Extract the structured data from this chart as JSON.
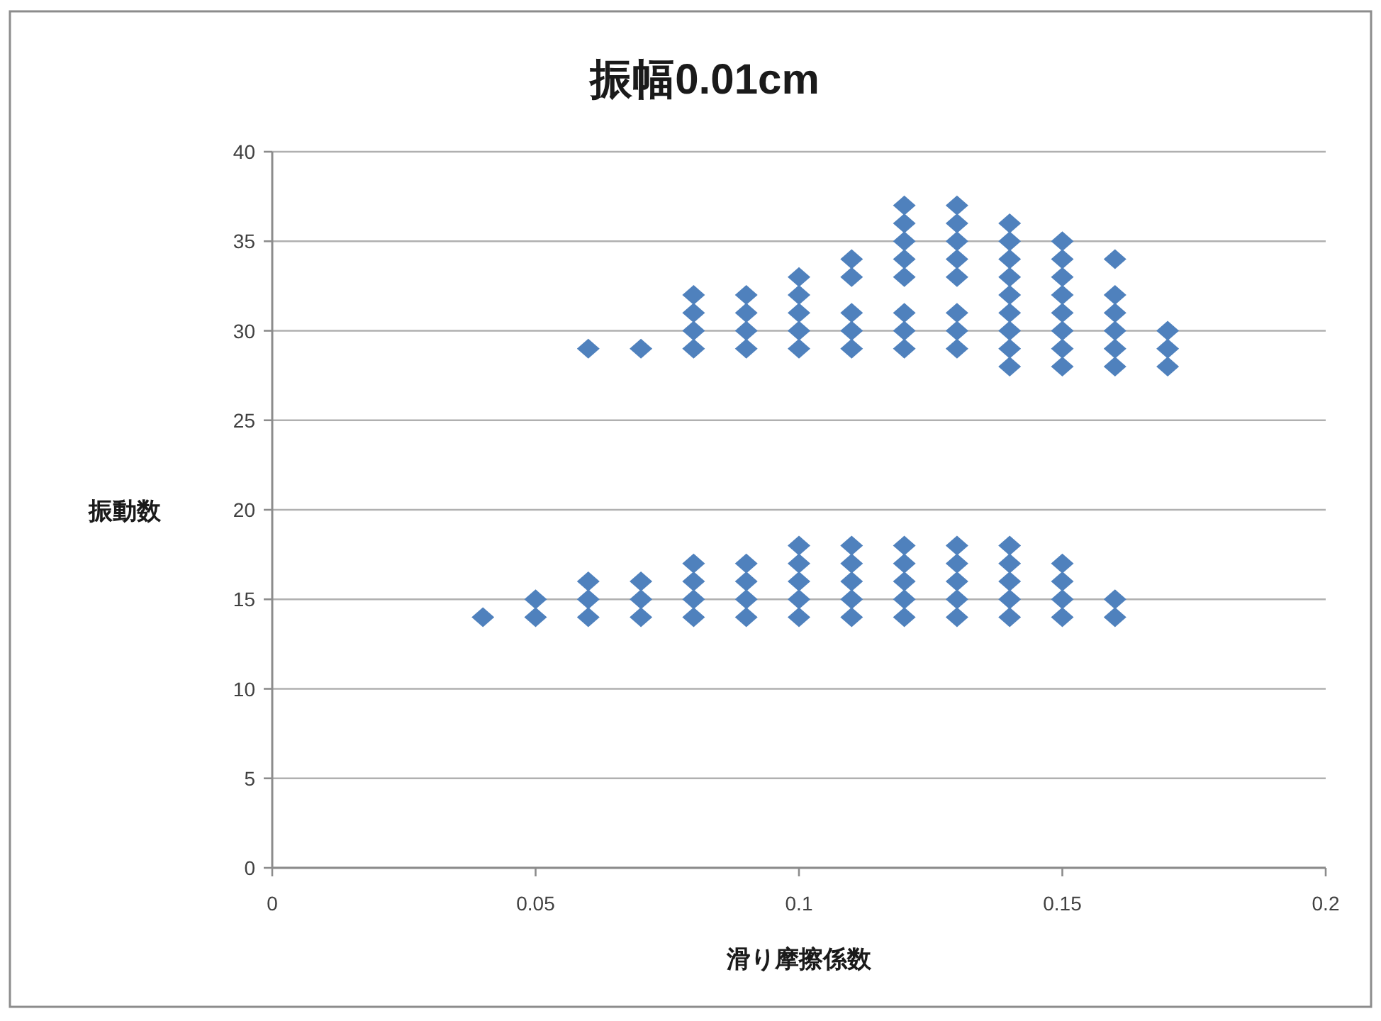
{
  "chart_data": {
    "type": "scatter",
    "title": "振幅0.01cm",
    "xlabel": "滑り摩擦係数",
    "ylabel": "振動数",
    "xlim": [
      0,
      0.2
    ],
    "xticks": [
      0,
      0.05,
      0.1,
      0.15,
      0.2
    ],
    "ylim": [
      0,
      40
    ],
    "yticks": [
      0,
      5,
      10,
      15,
      20,
      25,
      30,
      35,
      40
    ],
    "grid": "y",
    "marker": "diamond",
    "series": [
      {
        "color": "#4f81bd",
        "x": [
          0.04,
          0.05,
          0.05,
          0.06,
          0.06,
          0.06,
          0.07,
          0.07,
          0.07,
          0.08,
          0.08,
          0.08,
          0.08,
          0.09,
          0.09,
          0.09,
          0.09,
          0.1,
          0.1,
          0.1,
          0.1,
          0.1,
          0.11,
          0.11,
          0.11,
          0.11,
          0.11,
          0.12,
          0.12,
          0.12,
          0.12,
          0.12,
          0.13,
          0.13,
          0.13,
          0.13,
          0.13,
          0.14,
          0.14,
          0.14,
          0.14,
          0.14,
          0.15,
          0.15,
          0.15,
          0.15,
          0.16,
          0.16,
          0.06,
          0.07,
          0.08,
          0.08,
          0.08,
          0.08,
          0.09,
          0.09,
          0.09,
          0.09,
          0.1,
          0.1,
          0.1,
          0.1,
          0.1,
          0.11,
          0.11,
          0.11,
          0.11,
          0.11,
          0.12,
          0.12,
          0.12,
          0.12,
          0.12,
          0.12,
          0.12,
          0.12,
          0.13,
          0.13,
          0.13,
          0.13,
          0.13,
          0.13,
          0.13,
          0.13,
          0.14,
          0.14,
          0.14,
          0.14,
          0.14,
          0.14,
          0.14,
          0.14,
          0.14,
          0.15,
          0.15,
          0.15,
          0.15,
          0.15,
          0.15,
          0.15,
          0.15,
          0.16,
          0.16,
          0.16,
          0.16,
          0.16,
          0.16,
          0.17,
          0.17,
          0.17
        ],
        "values": [
          14,
          14,
          15,
          14,
          15,
          16,
          14,
          15,
          16,
          14,
          15,
          16,
          17,
          14,
          15,
          16,
          17,
          14,
          15,
          16,
          17,
          18,
          14,
          15,
          16,
          17,
          18,
          14,
          15,
          16,
          17,
          18,
          14,
          15,
          16,
          17,
          18,
          14,
          15,
          16,
          17,
          18,
          14,
          15,
          16,
          17,
          14,
          15,
          29,
          29,
          29,
          30,
          31,
          32,
          29,
          30,
          31,
          32,
          29,
          30,
          31,
          32,
          33,
          29,
          30,
          31,
          33,
          34,
          29,
          30,
          31,
          33,
          34,
          35,
          36,
          37,
          29,
          30,
          31,
          33,
          34,
          35,
          36,
          37,
          28,
          29,
          30,
          31,
          32,
          33,
          34,
          35,
          36,
          28,
          29,
          30,
          31,
          32,
          33,
          34,
          35,
          28,
          29,
          30,
          31,
          32,
          34,
          28,
          29,
          30
        ]
      }
    ]
  }
}
